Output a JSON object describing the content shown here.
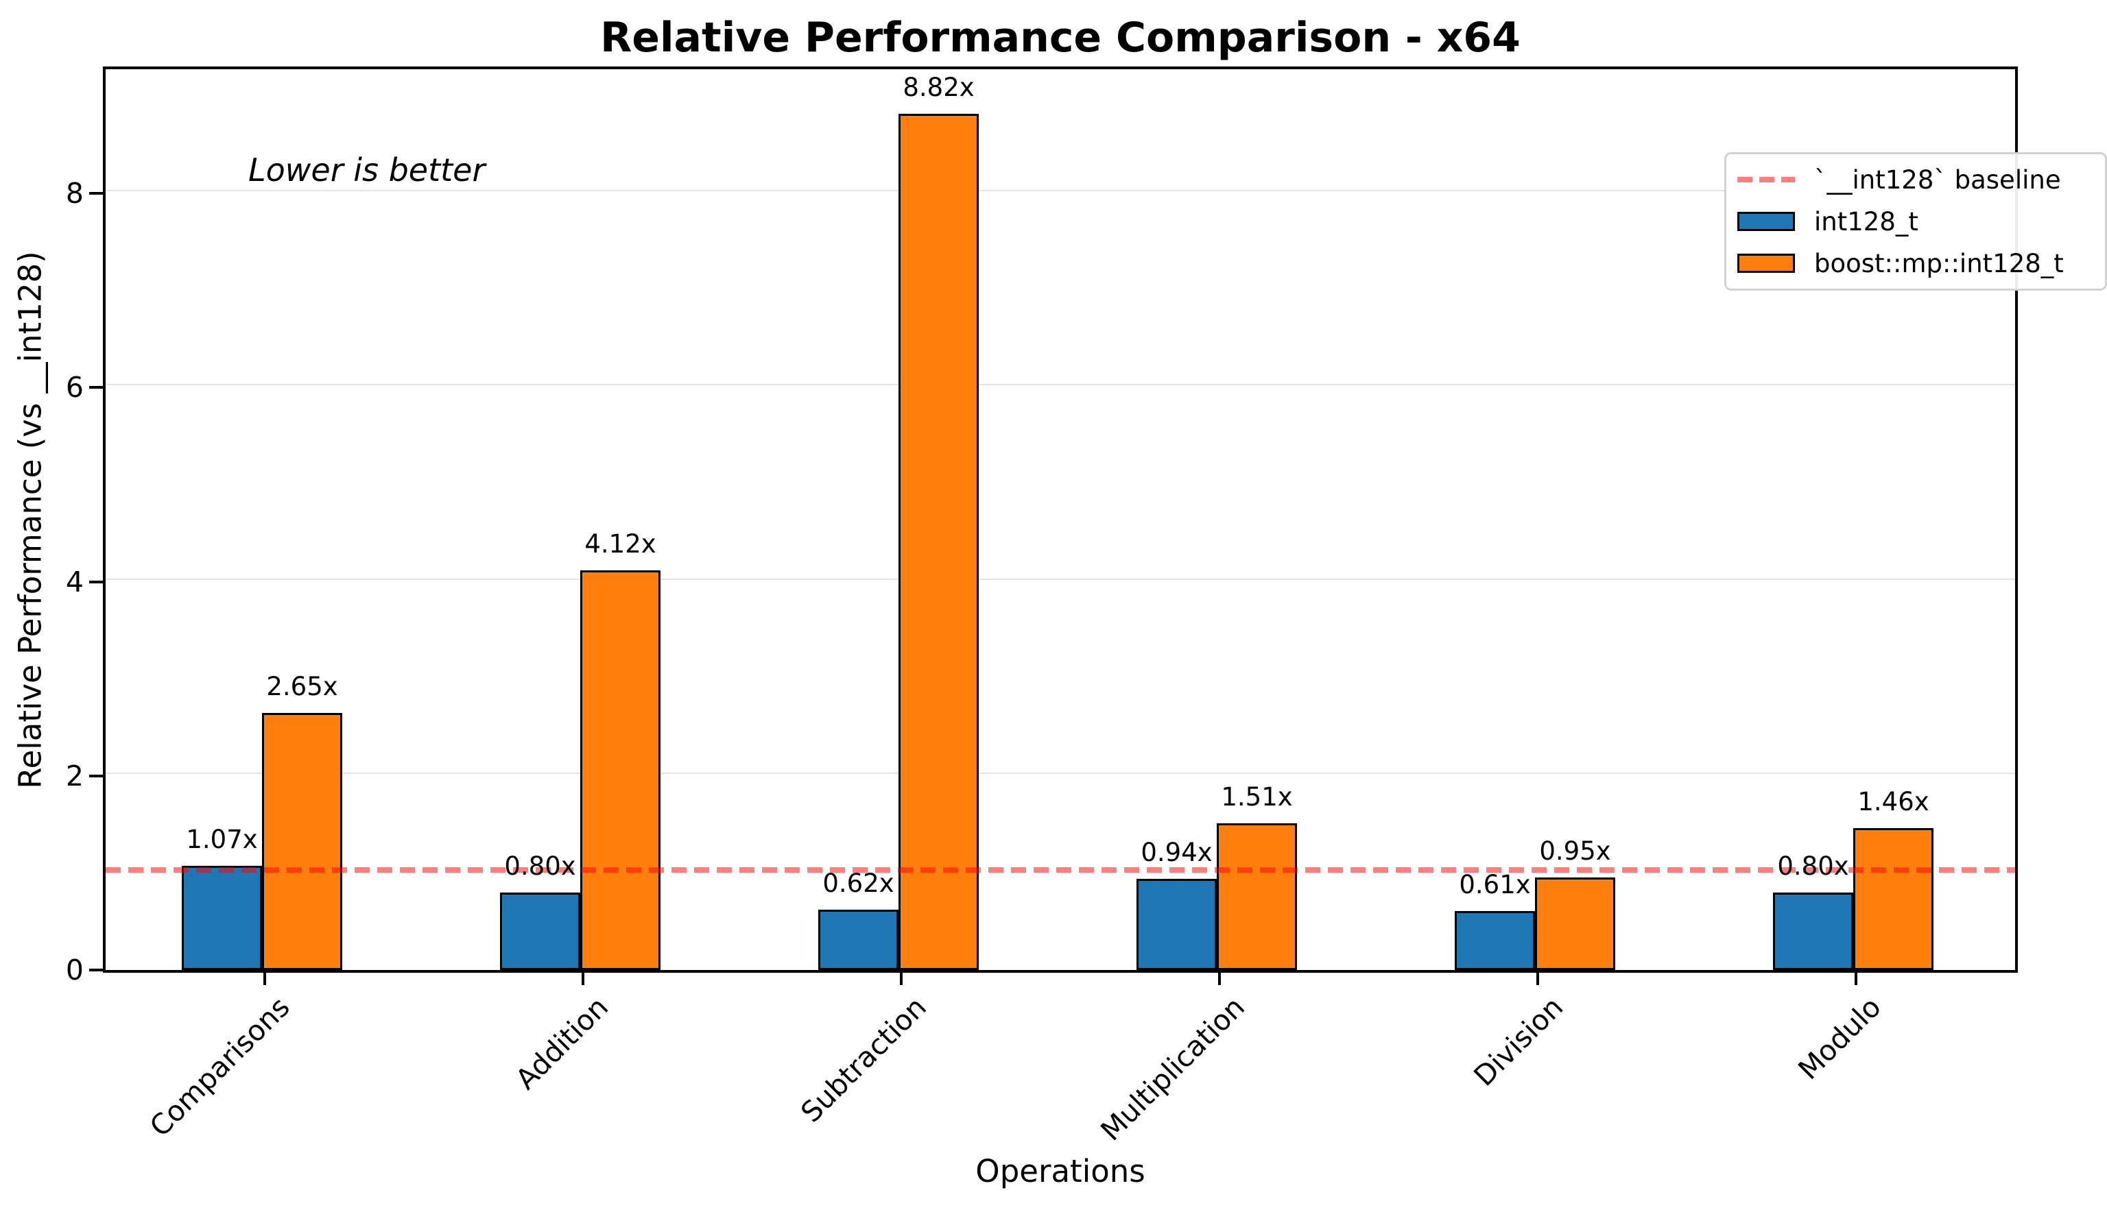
{
  "chart_data": {
    "type": "bar",
    "title": "Relative Performance Comparison - x64",
    "xlabel": "Operations",
    "ylabel": "Relative Performance (vs __int128)",
    "annotation": "Lower is better",
    "categories": [
      "Comparisons",
      "Addition",
      "Subtraction",
      "Multiplication",
      "Division",
      "Modulo"
    ],
    "series": [
      {
        "name": "int128_t",
        "color": "#1f77b4",
        "values": [
          1.07,
          0.8,
          0.62,
          0.94,
          0.61,
          0.8
        ]
      },
      {
        "name": "boost::mp::int128_t",
        "color": "#ff7f0e",
        "values": [
          2.65,
          4.12,
          8.82,
          1.51,
          0.95,
          1.46
        ]
      }
    ],
    "baseline": {
      "label": "`__int128` baseline",
      "value": 1.0,
      "color": "#ff0000",
      "opacity": 0.5
    },
    "ylim": [
      0,
      9.28
    ],
    "yticks": [
      0,
      2,
      4,
      6,
      8
    ],
    "value_suffix": "x",
    "grid": true,
    "legend_position": "upper right",
    "note": "Lower is better"
  }
}
